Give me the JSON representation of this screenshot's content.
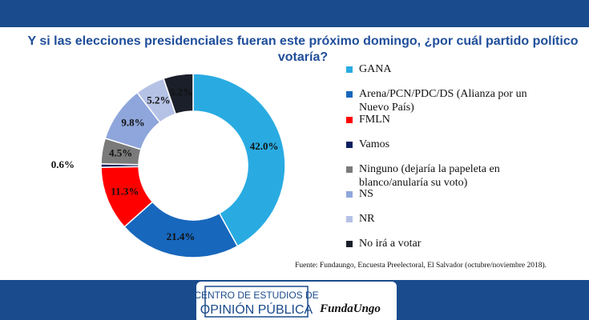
{
  "chart_data": {
    "type": "pie",
    "title": "Y si las elecciones presidenciales fueran este próximo domingo, ¿por cuál partido político",
    "subtitle": "votaría?",
    "categories": [
      "GANA",
      "Arena/PCN/PDC/DS (Alianza por un Nuevo País)",
      "FMLN",
      "Vamos",
      "Ninguno (dejaría la papeleta en blanco/anularía su voto)",
      "NS",
      "NR",
      "No irá a votar"
    ],
    "values": [
      42.0,
      21.4,
      11.3,
      0.6,
      4.5,
      9.8,
      5.2,
      5.2
    ],
    "value_labels": [
      "42.0%",
      "21.4%",
      "11.3%",
      "0.6%",
      "4.5%",
      "9.8%",
      "5.2%",
      "5.2%"
    ],
    "colors": [
      "#29abe2",
      "#1767bd",
      "#ff0000",
      "#0b1f5e",
      "#7a7a7a",
      "#8fa6dc",
      "#b5c2e6",
      "#1b1f2a"
    ],
    "legend": "right",
    "source": "Fuente: Fundaungo, Encuesta Preelectoral, El Salvador (octubre/noviembre 2018)."
  },
  "footer": {
    "center_line1": "CENTRO DE ESTUDIOS DE",
    "center_line2": "OPINIÓN PÚBLICA",
    "logo": "FundaUngo"
  }
}
